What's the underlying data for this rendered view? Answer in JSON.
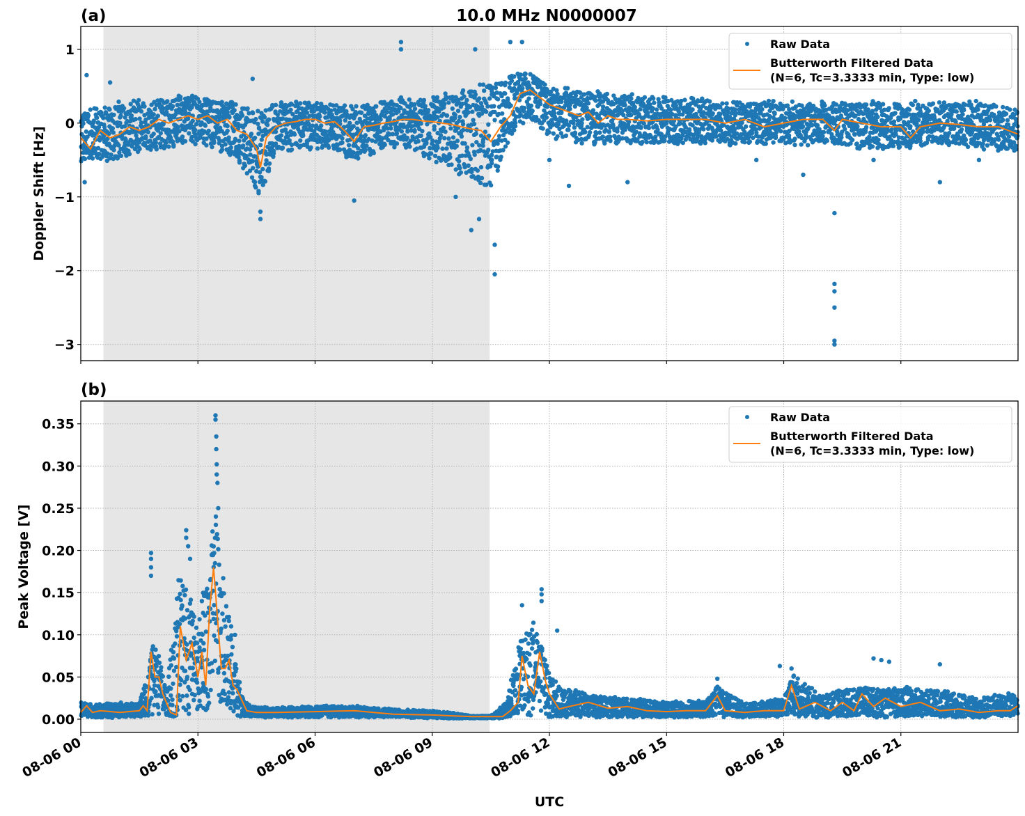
{
  "chart_data": [
    {
      "type": "scatter",
      "panel_label": "(a)",
      "title": "10.0 MHz N0000007",
      "xlabel": "UTC",
      "ylabel": "Doppler Shift [Hz]",
      "xlim_hours": [
        0,
        24
      ],
      "ylim": [
        -3.22,
        1.31
      ],
      "yticks": [
        1,
        0,
        -1,
        -2,
        -3
      ],
      "ytick_labels": [
        "1",
        "0",
        "−1",
        "−2",
        "−3"
      ],
      "grid": true,
      "legend_placement": "top-right",
      "legend": [
        "Raw Data",
        "Butterworth Filtered Data",
        "(N=6, Tc=3.3333 min, Type: low)"
      ],
      "shaded_interval_hours": [
        0.58,
        10.47
      ],
      "series": [
        {
          "name": "Butterworth Filtered Data",
          "x_hours": [
            0,
            0.25,
            0.5,
            0.75,
            1,
            1.25,
            1.5,
            1.75,
            2,
            2.25,
            2.5,
            2.75,
            3,
            3.25,
            3.5,
            3.75,
            4,
            4.25,
            4.5,
            4.6,
            4.75,
            5,
            5.25,
            5.5,
            5.75,
            6,
            6.25,
            6.5,
            6.75,
            7,
            7.25,
            7.5,
            7.75,
            8,
            8.25,
            8.5,
            8.75,
            9,
            9.25,
            9.5,
            9.75,
            10,
            10.25,
            10.5,
            10.75,
            11,
            11.25,
            11.5,
            11.75,
            12,
            12.25,
            12.5,
            12.75,
            13,
            13.25,
            13.5,
            13.75,
            14,
            14.5,
            15,
            15.5,
            16,
            16.5,
            17,
            17.5,
            18,
            18.5,
            19,
            19.3,
            19.5,
            20,
            20.5,
            21,
            21.25,
            21.5,
            22,
            22.5,
            23,
            23.5,
            24
          ],
          "values": [
            -0.2,
            -0.35,
            -0.1,
            -0.2,
            -0.15,
            -0.05,
            -0.1,
            -0.05,
            0.05,
            0.0,
            0.05,
            0.1,
            0.05,
            0.1,
            0.0,
            0.05,
            -0.1,
            -0.15,
            -0.35,
            -0.6,
            -0.2,
            -0.05,
            0.0,
            0.02,
            0.05,
            0.05,
            0.0,
            0.02,
            -0.1,
            -0.25,
            -0.05,
            -0.03,
            0.0,
            0.02,
            0.05,
            0.05,
            0.03,
            0.02,
            0.0,
            -0.02,
            -0.05,
            -0.08,
            -0.1,
            -0.25,
            -0.05,
            0.1,
            0.4,
            0.45,
            0.35,
            0.25,
            0.2,
            0.15,
            0.1,
            0.15,
            0.0,
            0.1,
            0.05,
            0.05,
            0.03,
            0.05,
            0.05,
            0.05,
            0.0,
            0.05,
            -0.05,
            0.0,
            0.05,
            0.05,
            -0.1,
            0.05,
            0.0,
            -0.05,
            -0.05,
            -0.2,
            -0.05,
            0.0,
            -0.02,
            -0.05,
            -0.05,
            -0.15
          ]
        },
        {
          "name": "Raw Data",
          "x_hours": [
            0,
            1,
            2,
            3,
            4,
            4.6,
            5,
            6,
            7,
            8,
            9,
            10,
            10.5,
            11,
            11.5,
            12,
            13,
            14,
            15,
            16,
            17,
            18,
            19,
            20,
            21,
            22,
            23,
            24
          ],
          "upper": [
            0.2,
            0.3,
            0.35,
            0.4,
            0.3,
            0.2,
            0.3,
            0.3,
            0.25,
            0.35,
            0.35,
            0.5,
            0.6,
            0.7,
            0.7,
            0.5,
            0.45,
            0.4,
            0.35,
            0.35,
            0.3,
            0.3,
            0.3,
            0.3,
            0.3,
            0.3,
            0.3,
            0.2
          ],
          "lower": [
            -0.55,
            -0.5,
            -0.35,
            -0.3,
            -0.5,
            -1.1,
            -0.4,
            -0.35,
            -0.5,
            -0.35,
            -0.5,
            -0.8,
            -1.0,
            -0.2,
            0.0,
            -0.2,
            -0.3,
            -0.3,
            -0.3,
            -0.3,
            -0.3,
            -0.3,
            -0.3,
            -0.35,
            -0.35,
            -0.3,
            -0.35,
            -0.4
          ],
          "outliers": [
            [
              0.15,
              0.65
            ],
            [
              0.1,
              -0.8
            ],
            [
              0.75,
              0.55
            ],
            [
              4.4,
              0.6
            ],
            [
              4.6,
              -1.3
            ],
            [
              4.6,
              -1.2
            ],
            [
              7.0,
              -1.05
            ],
            [
              8.2,
              1.1
            ],
            [
              8.2,
              1.0
            ],
            [
              9.1,
              0.3
            ],
            [
              9.6,
              -1.0
            ],
            [
              10.0,
              -1.45
            ],
            [
              10.1,
              1.0
            ],
            [
              10.2,
              -1.3
            ],
            [
              10.6,
              -1.65
            ],
            [
              10.6,
              -2.05
            ],
            [
              11.0,
              1.1
            ],
            [
              11.3,
              1.1
            ],
            [
              12.0,
              -0.5
            ],
            [
              12.5,
              -0.85
            ],
            [
              14.0,
              -0.8
            ],
            [
              17.3,
              -0.5
            ],
            [
              18.5,
              -0.7
            ],
            [
              19.3,
              -1.22
            ],
            [
              19.3,
              -2.18
            ],
            [
              19.3,
              -2.28
            ],
            [
              19.3,
              -2.5
            ],
            [
              19.3,
              -2.95
            ],
            [
              19.3,
              -3.0
            ],
            [
              20.3,
              -0.5
            ],
            [
              22.0,
              -0.8
            ],
            [
              23.0,
              -0.5
            ]
          ]
        }
      ]
    },
    {
      "type": "scatter",
      "panel_label": "(b)",
      "xlabel": "UTC",
      "ylabel": "Peak Voltage [V]",
      "xlim_hours": [
        0,
        24
      ],
      "ylim": [
        -0.0157,
        0.377
      ],
      "yticks": [
        0.35,
        0.3,
        0.25,
        0.2,
        0.15,
        0.1,
        0.05,
        0.0
      ],
      "ytick_labels": [
        "0.35",
        "0.30",
        "0.25",
        "0.20",
        "0.15",
        "0.10",
        "0.05",
        "0.00"
      ],
      "xticks_hours": [
        0,
        3,
        6,
        9,
        12,
        15,
        18,
        21
      ],
      "xtick_labels": [
        "08-06 00",
        "08-06 03",
        "08-06 06",
        "08-06 09",
        "08-06 12",
        "08-06 15",
        "08-06 18",
        "08-06 21"
      ],
      "grid": true,
      "legend_placement": "top-right",
      "legend": [
        "Raw Data",
        "Butterworth Filtered Data",
        "(N=6, Tc=3.3333 min, Type: low)"
      ],
      "shaded_interval_hours": [
        0.58,
        10.47
      ],
      "series": [
        {
          "name": "Butterworth Filtered Data",
          "x_hours": [
            0,
            0.15,
            0.3,
            0.5,
            1,
            1.5,
            1.6,
            1.7,
            1.8,
            1.9,
            2.0,
            2.1,
            2.3,
            2.45,
            2.55,
            2.7,
            2.85,
            3.0,
            3.1,
            3.2,
            3.3,
            3.4,
            3.5,
            3.6,
            3.7,
            3.8,
            3.9,
            4.0,
            4.1,
            4.25,
            4.5,
            5,
            6,
            7,
            8,
            9,
            9.5,
            10,
            10.5,
            10.8,
            11.0,
            11.2,
            11.3,
            11.45,
            11.6,
            11.75,
            11.9,
            12.0,
            12.25,
            12.5,
            13,
            13.5,
            14,
            14.5,
            15,
            15.5,
            16,
            16.3,
            16.5,
            17,
            17.5,
            18,
            18.2,
            18.4,
            18.8,
            19.2,
            19.5,
            19.8,
            20.0,
            20.3,
            20.6,
            21.0,
            21.5,
            22.0,
            22.5,
            23,
            23.5,
            23.8,
            24
          ],
          "values": [
            0.008,
            0.016,
            0.008,
            0.01,
            0.008,
            0.01,
            0.016,
            0.01,
            0.08,
            0.05,
            0.05,
            0.03,
            0.008,
            0.005,
            0.11,
            0.07,
            0.09,
            0.05,
            0.08,
            0.04,
            0.13,
            0.18,
            0.12,
            0.06,
            0.06,
            0.07,
            0.04,
            0.035,
            0.025,
            0.01,
            0.008,
            0.008,
            0.009,
            0.01,
            0.006,
            0.005,
            0.004,
            0.003,
            0.003,
            0.003,
            0.01,
            0.02,
            0.075,
            0.04,
            0.03,
            0.08,
            0.045,
            0.03,
            0.012,
            0.015,
            0.02,
            0.013,
            0.015,
            0.01,
            0.009,
            0.01,
            0.01,
            0.028,
            0.01,
            0.008,
            0.01,
            0.01,
            0.04,
            0.012,
            0.02,
            0.01,
            0.02,
            0.01,
            0.03,
            0.015,
            0.025,
            0.015,
            0.02,
            0.01,
            0.012,
            0.008,
            0.01,
            0.01,
            0.016
          ]
        },
        {
          "name": "Raw Data",
          "x_hours": [
            0,
            0.5,
            1,
            1.5,
            1.75,
            1.85,
            2.0,
            2.2,
            2.5,
            2.7,
            3.0,
            3.3,
            3.45,
            3.6,
            3.8,
            4.0,
            4.2,
            4.5,
            5,
            6,
            7,
            8,
            9,
            9.5,
            10,
            10.5,
            10.9,
            11.2,
            11.4,
            11.6,
            11.8,
            12,
            12.3,
            13,
            14,
            15,
            16,
            16.3,
            17,
            18,
            18.25,
            19,
            20,
            20.5,
            21,
            22,
            22.5,
            23,
            24
          ],
          "upper": [
            0.02,
            0.018,
            0.02,
            0.02,
            0.06,
            0.09,
            0.08,
            0.03,
            0.17,
            0.16,
            0.12,
            0.19,
            0.27,
            0.2,
            0.12,
            0.06,
            0.02,
            0.015,
            0.014,
            0.016,
            0.016,
            0.012,
            0.01,
            0.008,
            0.004,
            0.004,
            0.02,
            0.09,
            0.1,
            0.12,
            0.09,
            0.055,
            0.04,
            0.03,
            0.025,
            0.022,
            0.022,
            0.04,
            0.02,
            0.025,
            0.055,
            0.03,
            0.04,
            0.035,
            0.04,
            0.035,
            0.03,
            0.025,
            0.035
          ],
          "lower": [
            0.002,
            0.001,
            0.002,
            0.003,
            0.003,
            0.003,
            0.003,
            0.003,
            0.003,
            0.003,
            0.005,
            0.003,
            0.005,
            0.003,
            0.003,
            0.003,
            0.002,
            0.002,
            0.002,
            0.002,
            0.002,
            0.002,
            0.001,
            0.001,
            0.001,
            0.001,
            0.001,
            0.005,
            0.003,
            0.003,
            0.003,
            0.002,
            0.002,
            0.002,
            0.002,
            0.002,
            0.002,
            0.002,
            0.002,
            0.002,
            0.002,
            0.002,
            0.002,
            0.002,
            0.002,
            0.002,
            0.002,
            0.002,
            0.003
          ],
          "outliers": [
            [
              1.8,
              0.197
            ],
            [
              1.8,
              0.19
            ],
            [
              1.8,
              0.18
            ],
            [
              1.8,
              0.17
            ],
            [
              2.7,
              0.224
            ],
            [
              2.7,
              0.215
            ],
            [
              2.75,
              0.205
            ],
            [
              2.8,
              0.19
            ],
            [
              3.1,
              0.14
            ],
            [
              3.45,
              0.36
            ],
            [
              3.45,
              0.355
            ],
            [
              3.47,
              0.335
            ],
            [
              3.47,
              0.32
            ],
            [
              3.48,
              0.302
            ],
            [
              3.48,
              0.29
            ],
            [
              3.5,
              0.28
            ],
            [
              3.52,
              0.25
            ],
            [
              3.85,
              0.11
            ],
            [
              3.95,
              0.1
            ],
            [
              11.3,
              0.135
            ],
            [
              11.8,
              0.154
            ],
            [
              11.8,
              0.148
            ],
            [
              11.8,
              0.14
            ],
            [
              12.2,
              0.105
            ],
            [
              16.3,
              0.048
            ],
            [
              17.9,
              0.063
            ],
            [
              18.2,
              0.06
            ],
            [
              20.3,
              0.072
            ],
            [
              20.5,
              0.07
            ],
            [
              20.7,
              0.068
            ],
            [
              22.0,
              0.065
            ]
          ]
        }
      ]
    }
  ],
  "colors": {
    "raw": "#1f77b4",
    "filtered": "#ff7f0e",
    "shade": "#e6e6e6"
  }
}
